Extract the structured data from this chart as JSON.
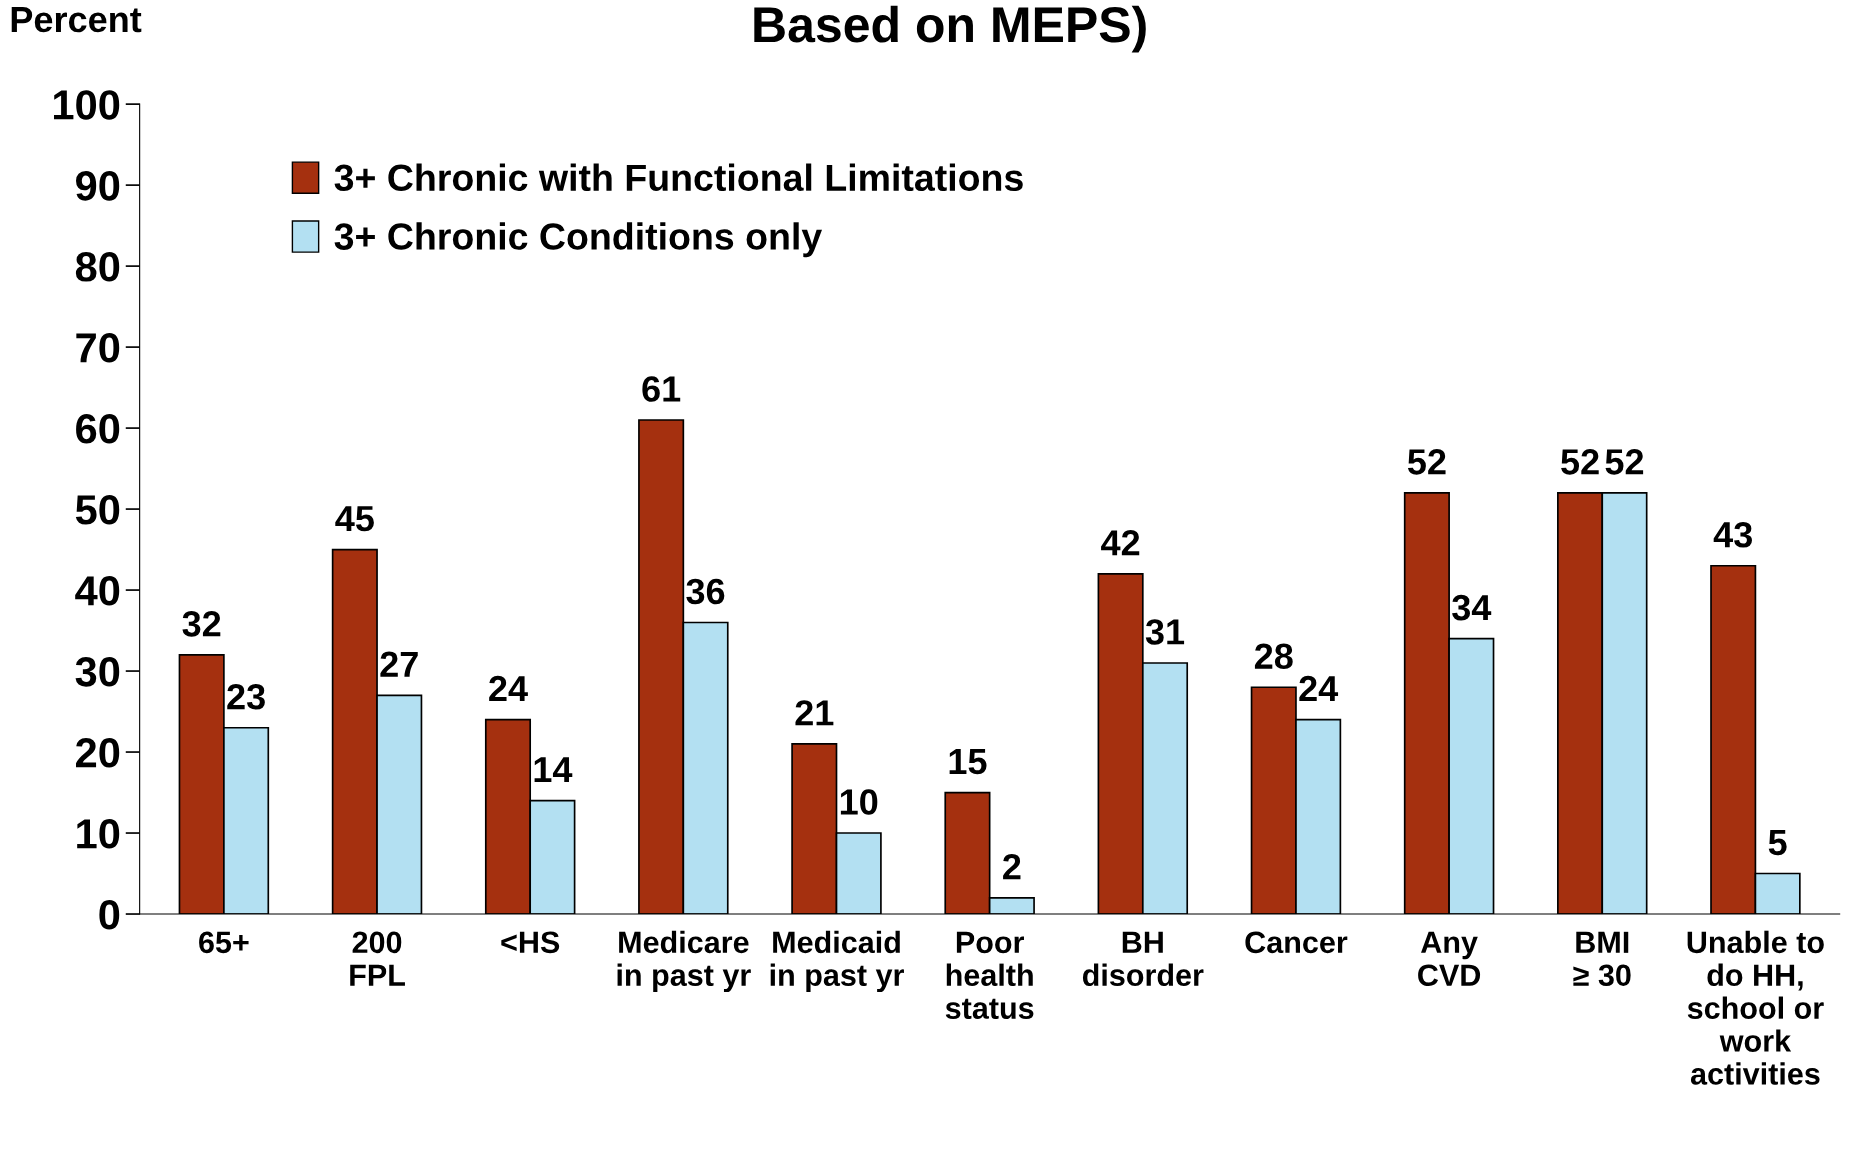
{
  "chart_data": {
    "type": "bar",
    "title": "Based on MEPS)",
    "ylabel": "Percent",
    "categories": [
      "65+",
      "200\nFPL",
      "<HS",
      "Medicare\nin past yr",
      "Medicaid\nin past yr",
      "Poor\nhealth\nstatus",
      "BH\ndisorder",
      "Cancer",
      "Any\nCVD",
      "BMI\n≥ 30",
      "Unable to\ndo HH,\nschool or\nwork\nactivities"
    ],
    "series": [
      {
        "name": "3+ Chronic with Functional Limitations",
        "color": "#a5300f",
        "values": [
          32,
          45,
          24,
          61,
          21,
          15,
          42,
          28,
          52,
          52,
          43
        ]
      },
      {
        "name": "3+ Chronic Conditions only",
        "color": "#b3e0f2",
        "values": [
          23,
          27,
          14,
          36,
          10,
          2,
          31,
          24,
          34,
          52,
          5
        ]
      }
    ],
    "ylim": [
      0,
      100
    ],
    "yticks": [
      0,
      10,
      20,
      30,
      40,
      50,
      60,
      70,
      80,
      90,
      100
    ],
    "data_labels": true,
    "legend": "top left",
    "grid": false
  }
}
